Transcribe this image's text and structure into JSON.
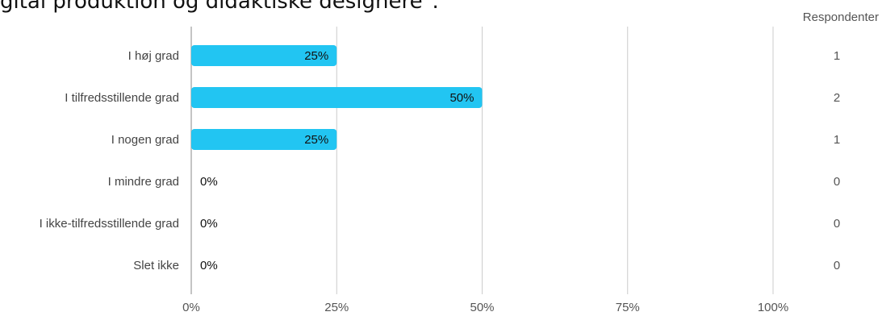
{
  "question": "gital produktion og didaktiske designere\".",
  "respondents_header": "Respondenter",
  "colors": {
    "bar": "#22c5f2",
    "grid": "#cccccc",
    "axis": "#b0b0b0"
  },
  "chart_data": {
    "type": "bar",
    "orientation": "horizontal",
    "categories": [
      "I høj grad",
      "I tilfredsstillende grad",
      "I nogen grad",
      "I mindre grad",
      "I ikke-tilfredsstillende grad",
      "Slet ikke"
    ],
    "values": [
      25,
      50,
      25,
      0,
      0,
      0
    ],
    "value_labels": [
      "25%",
      "50%",
      "25%",
      "0%",
      "0%",
      "0%"
    ],
    "respondents": [
      1,
      2,
      1,
      0,
      0,
      0
    ],
    "xticks": [
      "0%",
      "25%",
      "50%",
      "75%",
      "100%"
    ],
    "xlim": [
      0,
      100
    ],
    "grid": true
  }
}
